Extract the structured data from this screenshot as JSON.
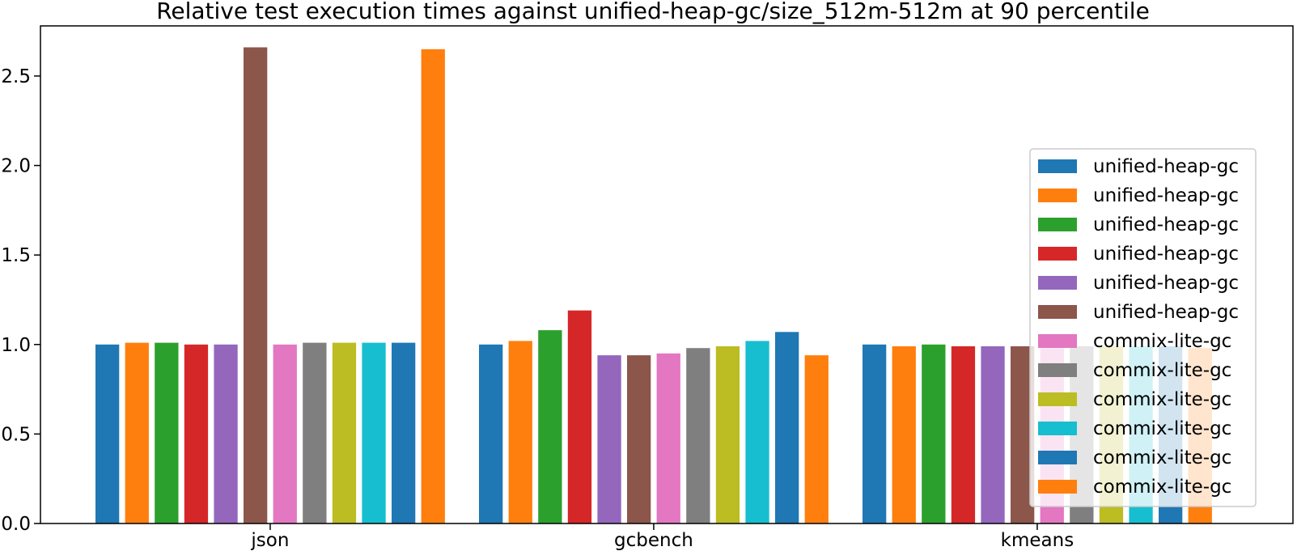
{
  "chart_data": {
    "type": "bar",
    "title": "Relative test execution times against unified-heap-gc/size_512m-512m at 90 percentile",
    "xlabel": "",
    "ylabel": "",
    "categories": [
      "json",
      "gcbench",
      "kmeans"
    ],
    "ylim": [
      0,
      2.78
    ],
    "yticks": [
      "0.0",
      "0.5",
      "1.0",
      "1.5",
      "2.0",
      "2.5"
    ],
    "grid": false,
    "legend_position": "center-right",
    "series": [
      {
        "name": "unified-heap-gc",
        "color": "#1f77b4",
        "values": [
          1.0,
          1.0,
          1.0
        ]
      },
      {
        "name": "unified-heap-gc",
        "color": "#ff7f0e",
        "values": [
          1.01,
          1.02,
          0.99
        ]
      },
      {
        "name": "unified-heap-gc",
        "color": "#2ca02c",
        "values": [
          1.01,
          1.08,
          1.0
        ]
      },
      {
        "name": "unified-heap-gc",
        "color": "#d62728",
        "values": [
          1.0,
          1.19,
          0.99
        ]
      },
      {
        "name": "unified-heap-gc",
        "color": "#9467bd",
        "values": [
          1.0,
          0.94,
          0.99
        ]
      },
      {
        "name": "unified-heap-gc",
        "color": "#8c564b",
        "values": [
          2.66,
          0.94,
          0.99
        ]
      },
      {
        "name": "commix-lite-gc",
        "color": "#e377c2",
        "values": [
          1.0,
          0.95,
          0.98
        ]
      },
      {
        "name": "commix-lite-gc",
        "color": "#7f7f7f",
        "values": [
          1.01,
          0.98,
          0.99
        ]
      },
      {
        "name": "commix-lite-gc",
        "color": "#bcbd22",
        "values": [
          1.01,
          0.99,
          0.99
        ]
      },
      {
        "name": "commix-lite-gc",
        "color": "#17becf",
        "values": [
          1.01,
          1.02,
          0.99
        ]
      },
      {
        "name": "commix-lite-gc",
        "color": "#1f77b4",
        "values": [
          1.01,
          1.07,
          0.99
        ]
      },
      {
        "name": "commix-lite-gc",
        "color": "#ff7f0e",
        "values": [
          2.65,
          0.94,
          0.98
        ]
      }
    ]
  }
}
